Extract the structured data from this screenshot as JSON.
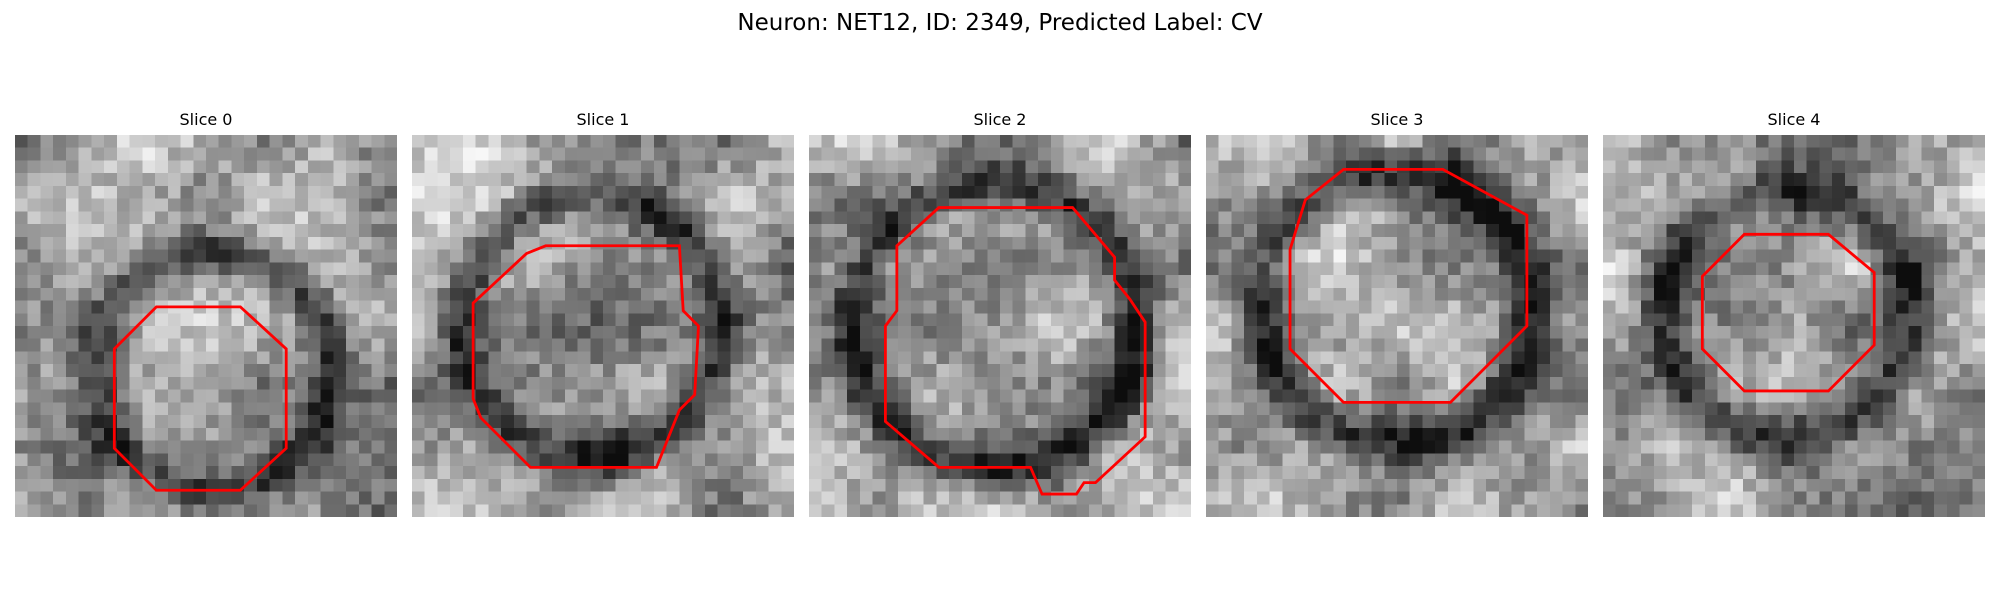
{
  "figure": {
    "title": "Neuron: NET12, ID: 2349, Predicted Label: CV"
  },
  "colors": {
    "outline": "#ff0000",
    "background": "#ffffff"
  },
  "panels": [
    {
      "title": "Slice 0",
      "seed": 11,
      "membrane": [
        0.52,
        0.62,
        0.5,
        0.4
      ],
      "outline": [
        [
          0.26,
          0.56
        ],
        [
          0.37,
          0.45
        ],
        [
          0.59,
          0.45
        ],
        [
          0.71,
          0.56
        ],
        [
          0.71,
          0.82
        ],
        [
          0.59,
          0.93
        ],
        [
          0.37,
          0.93
        ],
        [
          0.26,
          0.82
        ]
      ]
    },
    {
      "title": "Slice 1",
      "seed": 23,
      "membrane": [
        0.47,
        0.5,
        0.55,
        0.51
      ],
      "outline": [
        [
          0.16,
          0.44
        ],
        [
          0.3,
          0.31
        ],
        [
          0.35,
          0.29
        ],
        [
          0.7,
          0.29
        ],
        [
          0.71,
          0.46
        ],
        [
          0.75,
          0.5
        ],
        [
          0.74,
          0.68
        ],
        [
          0.7,
          0.72
        ],
        [
          0.64,
          0.87
        ],
        [
          0.31,
          0.87
        ],
        [
          0.18,
          0.74
        ],
        [
          0.16,
          0.69
        ]
      ]
    },
    {
      "title": "Slice 2",
      "seed": 37,
      "membrane": [
        0.49,
        0.5,
        0.6,
        0.58
      ],
      "outline": [
        [
          0.23,
          0.29
        ],
        [
          0.34,
          0.19
        ],
        [
          0.69,
          0.19
        ],
        [
          0.8,
          0.32
        ],
        [
          0.8,
          0.38
        ],
        [
          0.84,
          0.43
        ],
        [
          0.88,
          0.49
        ],
        [
          0.88,
          0.79
        ],
        [
          0.75,
          0.91
        ],
        [
          0.72,
          0.91
        ],
        [
          0.7,
          0.94
        ],
        [
          0.61,
          0.94
        ],
        [
          0.58,
          0.87
        ],
        [
          0.34,
          0.87
        ],
        [
          0.2,
          0.75
        ],
        [
          0.2,
          0.5
        ],
        [
          0.23,
          0.46
        ]
      ]
    },
    {
      "title": "Slice 3",
      "seed": 51,
      "membrane": [
        0.5,
        0.45,
        0.57,
        0.58
      ],
      "outline": [
        [
          0.26,
          0.17
        ],
        [
          0.36,
          0.09
        ],
        [
          0.62,
          0.09
        ],
        [
          0.84,
          0.21
        ],
        [
          0.84,
          0.5
        ],
        [
          0.64,
          0.7
        ],
        [
          0.36,
          0.7
        ],
        [
          0.22,
          0.56
        ],
        [
          0.22,
          0.3
        ]
      ]
    },
    {
      "title": "Slice 4",
      "seed": 67,
      "membrane": [
        0.48,
        0.47,
        0.52,
        0.4
      ],
      "outline": [
        [
          0.26,
          0.37
        ],
        [
          0.37,
          0.26
        ],
        [
          0.59,
          0.26
        ],
        [
          0.71,
          0.36
        ],
        [
          0.71,
          0.55
        ],
        [
          0.59,
          0.67
        ],
        [
          0.37,
          0.67
        ],
        [
          0.26,
          0.56
        ]
      ]
    }
  ]
}
